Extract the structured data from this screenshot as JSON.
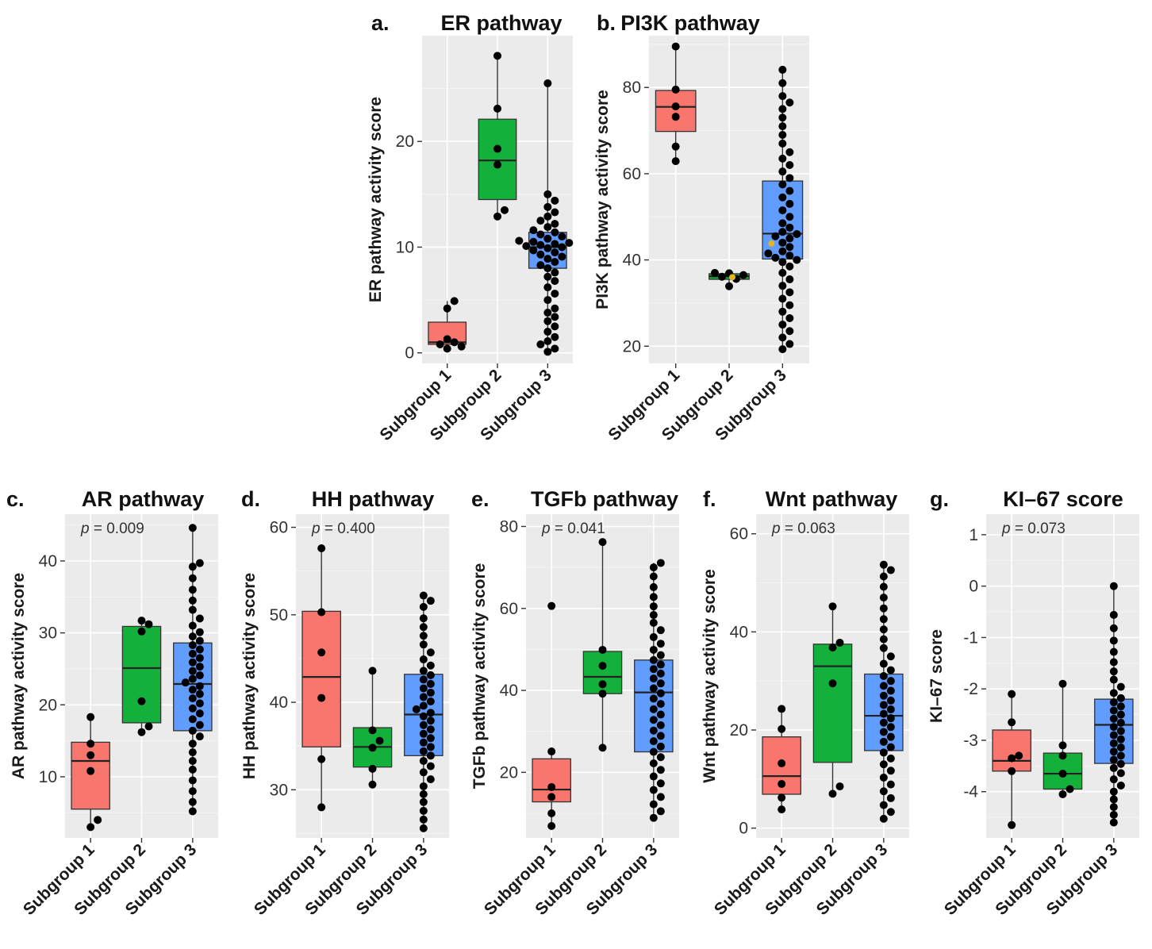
{
  "colors": {
    "subgroup_1": "#f8766d",
    "subgroup_2": "#14b03c",
    "subgroup_3": "#619cff",
    "highlight_point": "#e6b422"
  },
  "chart_data": [
    {
      "type": "box",
      "letter": "a.",
      "title": "ER pathway",
      "ylabel": "ER pathway activity score",
      "pvalue": "",
      "categories": [
        "Subgroup 1",
        "Subgroup 2",
        "Subgroup 3"
      ],
      "ylim": [
        -1,
        30
      ],
      "yticks": [
        0,
        10,
        20
      ],
      "boxes": [
        {
          "q1": 0.8,
          "median": 1.0,
          "q3": 2.9,
          "lo": 0.3,
          "hi": 4.9
        },
        {
          "q1": 14.5,
          "median": 18.2,
          "q3": 22.1,
          "lo": 12.9,
          "hi": 28.1
        },
        {
          "q1": 8.0,
          "median": 10.0,
          "q3": 11.4,
          "lo": 0.1,
          "hi": 25.5
        }
      ],
      "points": [
        [
          0.4,
          0.6,
          0.8,
          1.0,
          1.3,
          4.2,
          4.9
        ],
        [
          12.9,
          13.5,
          17.8,
          19.3,
          23.1,
          28.1
        ],
        [
          0.1,
          0.4,
          0.8,
          1.1,
          1.5,
          2.0,
          2.5,
          3.0,
          3.4,
          3.8,
          4.2,
          5.0,
          5.6,
          6.2,
          6.8,
          7.2,
          7.6,
          8.0,
          8.3,
          8.6,
          8.9,
          9.1,
          9.3,
          9.5,
          9.7,
          9.9,
          10.0,
          10.1,
          10.2,
          10.3,
          10.4,
          10.5,
          10.6,
          10.8,
          11.0,
          11.2,
          11.4,
          11.6,
          11.9,
          12.2,
          12.5,
          12.9,
          13.3,
          13.8,
          14.4,
          15.0,
          25.5
        ]
      ],
      "highlight": null
    },
    {
      "type": "box",
      "letter": "b.",
      "title": "PI3K pathway",
      "ylabel": "PI3K pathway activity score",
      "pvalue": "",
      "categories": [
        "Subgroup 1",
        "Subgroup 2",
        "Subgroup 3"
      ],
      "ylim": [
        16,
        92
      ],
      "yticks": [
        20,
        40,
        60,
        80
      ],
      "boxes": [
        {
          "q1": 69.8,
          "median": 75.5,
          "q3": 79.3,
          "lo": 62.9,
          "hi": 89.5
        },
        {
          "q1": 35.5,
          "median": 36.2,
          "q3": 36.8,
          "lo": 33.9,
          "hi": 37.0
        },
        {
          "q1": 40.2,
          "median": 46.1,
          "q3": 58.3,
          "lo": 19.3,
          "hi": 84.1
        }
      ],
      "points": [
        [
          62.9,
          66.3,
          73.2,
          75.6,
          79.5,
          89.5
        ],
        [
          33.9,
          35.6,
          36.1,
          36.5,
          36.9,
          37.0
        ],
        [
          19.3,
          20.5,
          22.0,
          23.5,
          25.0,
          26.5,
          28.0,
          29.5,
          31.0,
          32.5,
          34.0,
          35.5,
          37.0,
          38.5,
          39.5,
          40.0,
          40.5,
          41.0,
          41.5,
          42.0,
          43.0,
          44.0,
          45.0,
          45.5,
          46.0,
          46.5,
          47.5,
          48.5,
          50.0,
          51.5,
          53.0,
          54.5,
          56.0,
          57.5,
          59.0,
          60.5,
          62.0,
          63.5,
          65.0,
          67.0,
          69.0,
          71.0,
          73.0,
          75.0,
          76.5,
          78.0,
          81.0,
          84.1
        ]
      ],
      "highlight": [
        {
          "group": 1,
          "value": 36.0
        },
        {
          "group": 2,
          "value": 43.8
        }
      ]
    },
    {
      "type": "box",
      "letter": "c.",
      "title": "AR pathway",
      "ylabel": "AR pathway activity score",
      "pvalue": "= 0.009",
      "categories": [
        "Subgroup 1",
        "Subgroup 2",
        "Subgroup 3"
      ],
      "ylim": [
        1.5,
        46.5
      ],
      "yticks": [
        10,
        20,
        30,
        40
      ],
      "boxes": [
        {
          "q1": 5.5,
          "median": 12.2,
          "q3": 14.8,
          "lo": 3.0,
          "hi": 18.3
        },
        {
          "q1": 17.5,
          "median": 25.1,
          "q3": 30.9,
          "lo": 16.2,
          "hi": 31.7
        },
        {
          "q1": 16.4,
          "median": 22.9,
          "q3": 28.6,
          "lo": 5.2,
          "hi": 44.6
        }
      ],
      "points": [
        [
          3.0,
          4.0,
          10.8,
          13.0,
          14.6,
          18.3
        ],
        [
          16.2,
          17.0,
          20.5,
          30.2,
          31.2,
          31.7
        ],
        [
          5.2,
          6.5,
          8.0,
          9.5,
          11.0,
          12.2,
          13.4,
          14.6,
          15.6,
          16.4,
          17.2,
          18.0,
          18.8,
          19.5,
          20.2,
          20.9,
          21.5,
          22.1,
          22.6,
          23.1,
          23.6,
          24.1,
          24.7,
          25.3,
          25.9,
          26.5,
          27.1,
          27.7,
          28.3,
          28.9,
          29.5,
          30.1,
          31.0,
          32.0,
          33.2,
          34.5,
          36.0,
          37.6,
          39.2,
          39.7,
          44.6
        ]
      ],
      "highlight": null
    },
    {
      "type": "box",
      "letter": "d.",
      "title": "HH pathway",
      "ylabel": "HH pathway activity score",
      "pvalue": "= 0.400",
      "categories": [
        "Subgroup 1",
        "Subgroup 2",
        "Subgroup 3"
      ],
      "ylim": [
        24.5,
        61.5
      ],
      "yticks": [
        30,
        40,
        50,
        60
      ],
      "boxes": [
        {
          "q1": 34.9,
          "median": 42.9,
          "q3": 50.4,
          "lo": 28.0,
          "hi": 57.6
        },
        {
          "q1": 32.6,
          "median": 34.9,
          "q3": 37.1,
          "lo": 30.6,
          "hi": 43.6
        },
        {
          "q1": 33.9,
          "median": 38.6,
          "q3": 43.2,
          "lo": 25.6,
          "hi": 52.2
        }
      ],
      "points": [
        [
          28.0,
          33.5,
          40.5,
          45.7,
          50.3,
          57.6
        ],
        [
          30.6,
          32.4,
          34.8,
          35.6,
          36.8,
          43.6
        ],
        [
          25.6,
          26.6,
          27.6,
          28.6,
          29.5,
          30.4,
          31.2,
          32.0,
          32.7,
          33.3,
          33.9,
          34.4,
          34.9,
          35.4,
          35.9,
          36.4,
          36.9,
          37.4,
          37.9,
          38.4,
          38.8,
          39.2,
          39.6,
          40.1,
          40.6,
          41.1,
          41.6,
          42.1,
          42.6,
          43.1,
          43.6,
          44.2,
          44.9,
          45.7,
          46.6,
          47.6,
          48.6,
          49.6,
          50.9,
          51.6,
          52.2
        ]
      ],
      "highlight": null
    },
    {
      "type": "box",
      "letter": "e.",
      "title": "TGFb pathway",
      "ylabel": "TGFb pathway activity score",
      "pvalue": "= 0.041",
      "categories": [
        "Subgroup 1",
        "Subgroup 2",
        "Subgroup 3"
      ],
      "ylim": [
        4,
        83
      ],
      "yticks": [
        20,
        40,
        60,
        80
      ],
      "boxes": [
        {
          "q1": 12.8,
          "median": 15.8,
          "q3": 23.3,
          "lo": 6.9,
          "hi": 25.1
        },
        {
          "q1": 39.2,
          "median": 43.3,
          "q3": 49.5,
          "lo": 26.0,
          "hi": 76.2
        },
        {
          "q1": 25.0,
          "median": 39.5,
          "q3": 47.4,
          "lo": 8.9,
          "hi": 71.1
        }
      ],
      "points": [
        [
          6.9,
          10.0,
          14.0,
          16.4,
          25.1,
          60.6
        ],
        [
          26.0,
          39.2,
          41.5,
          46.0,
          49.9,
          76.2
        ],
        [
          8.9,
          10.5,
          12.2,
          14.0,
          15.7,
          17.3,
          19.0,
          20.6,
          22.2,
          23.7,
          25.0,
          26.3,
          27.6,
          28.9,
          30.2,
          31.5,
          32.8,
          34.1,
          35.4,
          36.7,
          38.0,
          39.3,
          40.5,
          41.7,
          42.9,
          44.1,
          45.2,
          46.3,
          47.4,
          48.6,
          49.9,
          51.4,
          53.0,
          54.7,
          56.5,
          58.4,
          60.5,
          62.8,
          65.2,
          67.8,
          70.0,
          71.1
        ]
      ],
      "highlight": null
    },
    {
      "type": "box",
      "letter": "f.",
      "title": "Wnt pathway",
      "ylabel": "Wnt pathway activity score",
      "pvalue": "= 0.063",
      "categories": [
        "Subgroup 1",
        "Subgroup 2",
        "Subgroup 3"
      ],
      "ylim": [
        -2,
        64
      ],
      "yticks": [
        0,
        20,
        40,
        60
      ],
      "boxes": [
        {
          "q1": 6.9,
          "median": 10.6,
          "q3": 18.6,
          "lo": 3.8,
          "hi": 24.3
        },
        {
          "q1": 13.4,
          "median": 33.0,
          "q3": 37.5,
          "lo": 7.0,
          "hi": 45.2
        },
        {
          "q1": 15.8,
          "median": 22.9,
          "q3": 31.4,
          "lo": 1.9,
          "hi": 53.7
        }
      ],
      "points": [
        [
          3.8,
          6.2,
          9.0,
          13.2,
          20.2,
          24.3
        ],
        [
          7.0,
          8.5,
          29.5,
          36.8,
          37.8,
          45.2
        ],
        [
          1.9,
          3.3,
          4.7,
          6.1,
          7.5,
          8.9,
          10.3,
          11.7,
          13.0,
          14.2,
          15.4,
          16.5,
          17.6,
          18.6,
          19.6,
          20.6,
          21.5,
          22.4,
          23.3,
          24.2,
          25.1,
          26.0,
          27.0,
          28.0,
          29.0,
          30.0,
          31.0,
          32.2,
          33.5,
          35.0,
          36.7,
          38.5,
          40.5,
          42.6,
          44.8,
          47.0,
          49.2,
          51.3,
          52.6,
          53.7
        ]
      ],
      "highlight": null
    },
    {
      "type": "box",
      "letter": "g.",
      "title": "KI–67 score",
      "ylabel": "KI–67 score",
      "pvalue": "= 0.073",
      "categories": [
        "Subgroup 1",
        "Subgroup 2",
        "Subgroup 3"
      ],
      "ylim": [
        -4.9,
        1.4
      ],
      "yticks": [
        -4,
        -3,
        -2,
        -1,
        0,
        1
      ],
      "boxes": [
        {
          "q1": -3.6,
          "median": -3.4,
          "q3": -2.8,
          "lo": -4.65,
          "hi": -2.1
        },
        {
          "q1": -3.95,
          "median": -3.65,
          "q3": -3.25,
          "lo": -4.05,
          "hi": -1.9
        },
        {
          "q1": -3.45,
          "median": -2.7,
          "q3": -2.2,
          "lo": -4.6,
          "hi": 0.0
        }
      ],
      "points": [
        [
          -4.65,
          -3.6,
          -3.35,
          -3.3,
          -2.65,
          -2.1
        ],
        [
          -4.05,
          -3.95,
          -3.65,
          -3.3,
          -3.1,
          -1.9
        ],
        [
          -4.6,
          -4.45,
          -4.3,
          -4.15,
          -4.0,
          -3.88,
          -3.76,
          -3.64,
          -3.54,
          -3.46,
          -3.38,
          -3.3,
          -3.22,
          -3.14,
          -3.06,
          -2.98,
          -2.9,
          -2.82,
          -2.74,
          -2.66,
          -2.58,
          -2.5,
          -2.42,
          -2.34,
          -2.26,
          -2.18,
          -2.08,
          -1.96,
          -1.82,
          -1.66,
          -1.48,
          -1.28,
          -1.06,
          -0.82,
          -0.56,
          0.0
        ]
      ],
      "highlight": null
    }
  ]
}
